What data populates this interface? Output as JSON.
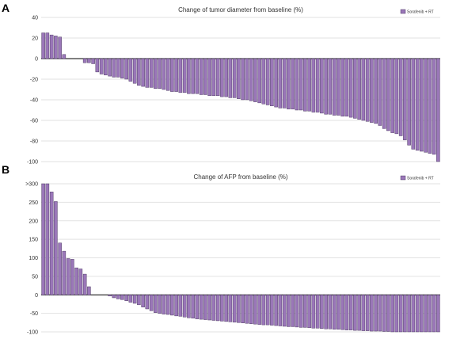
{
  "chart_data": [
    {
      "type": "bar",
      "panel_label": "A",
      "title": "Change of tumor diameter from baseline (%)",
      "legend": [
        "Sorafenib + RT"
      ],
      "legend_position": "top-right",
      "yticks": [
        "40",
        "20",
        "0",
        "-20",
        "-40",
        "-60",
        "-80",
        "-100"
      ],
      "ylim": [
        -100,
        40
      ],
      "grid": true,
      "bar_color": "#9a77b8",
      "values": [
        25,
        25,
        23,
        22,
        21,
        4,
        0,
        0,
        0,
        0,
        -4,
        -4,
        -5,
        -13,
        -15,
        -16,
        -17,
        -18,
        -18,
        -19,
        -20,
        -22,
        -24,
        -26,
        -27,
        -28,
        -28,
        -29,
        -29,
        -30,
        -31,
        -32,
        -32,
        -33,
        -33,
        -34,
        -34,
        -34,
        -35,
        -35,
        -36,
        -36,
        -36,
        -37,
        -37,
        -38,
        -38,
        -39,
        -40,
        -40,
        -41,
        -42,
        -43,
        -44,
        -45,
        -46,
        -47,
        -48,
        -48,
        -49,
        -49,
        -50,
        -50,
        -51,
        -51,
        -52,
        -52,
        -53,
        -54,
        -54,
        -55,
        -55,
        -56,
        -56,
        -57,
        -58,
        -59,
        -60,
        -61,
        -62,
        -63,
        -65,
        -68,
        -70,
        -72,
        -73,
        -75,
        -79,
        -84,
        -88,
        -89,
        -90,
        -91,
        -92,
        -93,
        -100
      ]
    },
    {
      "type": "bar",
      "panel_label": "B",
      "title": "Change of AFP from baseline (%)",
      "legend": [
        "Sorafenib + RT"
      ],
      "legend_position": "top-right",
      "yticks": [
        ">300",
        "250",
        "200",
        "150",
        "100",
        "50",
        "0",
        "-50",
        "-100"
      ],
      "ylim": [
        -100,
        300
      ],
      "grid": true,
      "bar_color": "#9a77b8",
      "values": [
        300,
        300,
        278,
        252,
        140,
        118,
        98,
        96,
        73,
        70,
        56,
        22,
        0,
        0,
        0,
        0,
        -3,
        -8,
        -11,
        -13,
        -16,
        -20,
        -23,
        -27,
        -33,
        -38,
        -43,
        -48,
        -50,
        -52,
        -53,
        -55,
        -57,
        -58,
        -60,
        -62,
        -63,
        -65,
        -66,
        -67,
        -68,
        -69,
        -70,
        -71,
        -72,
        -73,
        -74,
        -75,
        -76,
        -77,
        -78,
        -79,
        -80,
        -81,
        -81,
        -82,
        -83,
        -84,
        -85,
        -86,
        -86,
        -87,
        -88,
        -88,
        -89,
        -90,
        -90,
        -91,
        -92,
        -92,
        -93,
        -93,
        -94,
        -95,
        -95,
        -96,
        -96,
        -97,
        -97,
        -98,
        -98,
        -98,
        -99,
        -99,
        -100,
        -100,
        -100,
        -100,
        -100,
        -100,
        -100,
        -100,
        -100,
        -100,
        -100,
        -100
      ]
    }
  ]
}
